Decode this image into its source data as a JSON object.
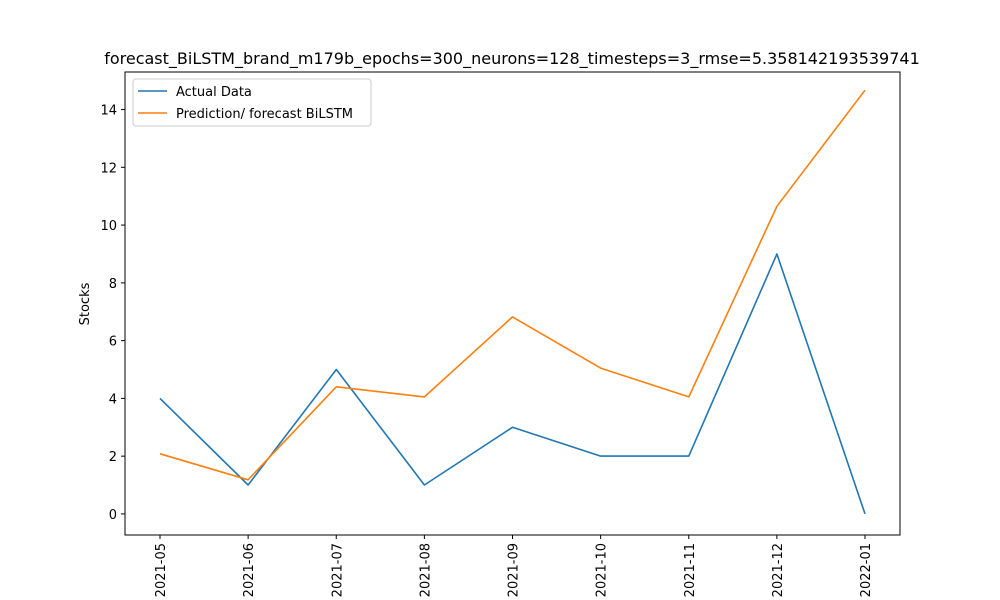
{
  "chart_data": {
    "type": "line",
    "title": "forecast_BiLSTM_brand_m179b_epochs=300_neurons=128_timesteps=3_rmse=5.358142193539741",
    "xlabel": "",
    "ylabel": "Stocks",
    "categories": [
      "2021-05",
      "2021-06",
      "2021-07",
      "2021-08",
      "2021-09",
      "2021-10",
      "2021-11",
      "2021-12",
      "2022-01"
    ],
    "yticks": [
      "0",
      "2",
      "4",
      "6",
      "8",
      "10",
      "12",
      "14"
    ],
    "ylim": [
      -0.73,
      15.3
    ],
    "grid": false,
    "legend_position": "upper-left",
    "series": [
      {
        "name": "Actual Data",
        "color": "#1f77b4",
        "values": [
          4,
          1,
          5,
          1,
          3,
          2,
          2,
          9,
          0
        ]
      },
      {
        "name": "Prediction/ forecast BiLSTM",
        "color": "#ff7f0e",
        "values": [
          2.08,
          1.18,
          4.4,
          4.05,
          6.82,
          5.05,
          4.05,
          10.65,
          14.67
        ]
      }
    ]
  }
}
